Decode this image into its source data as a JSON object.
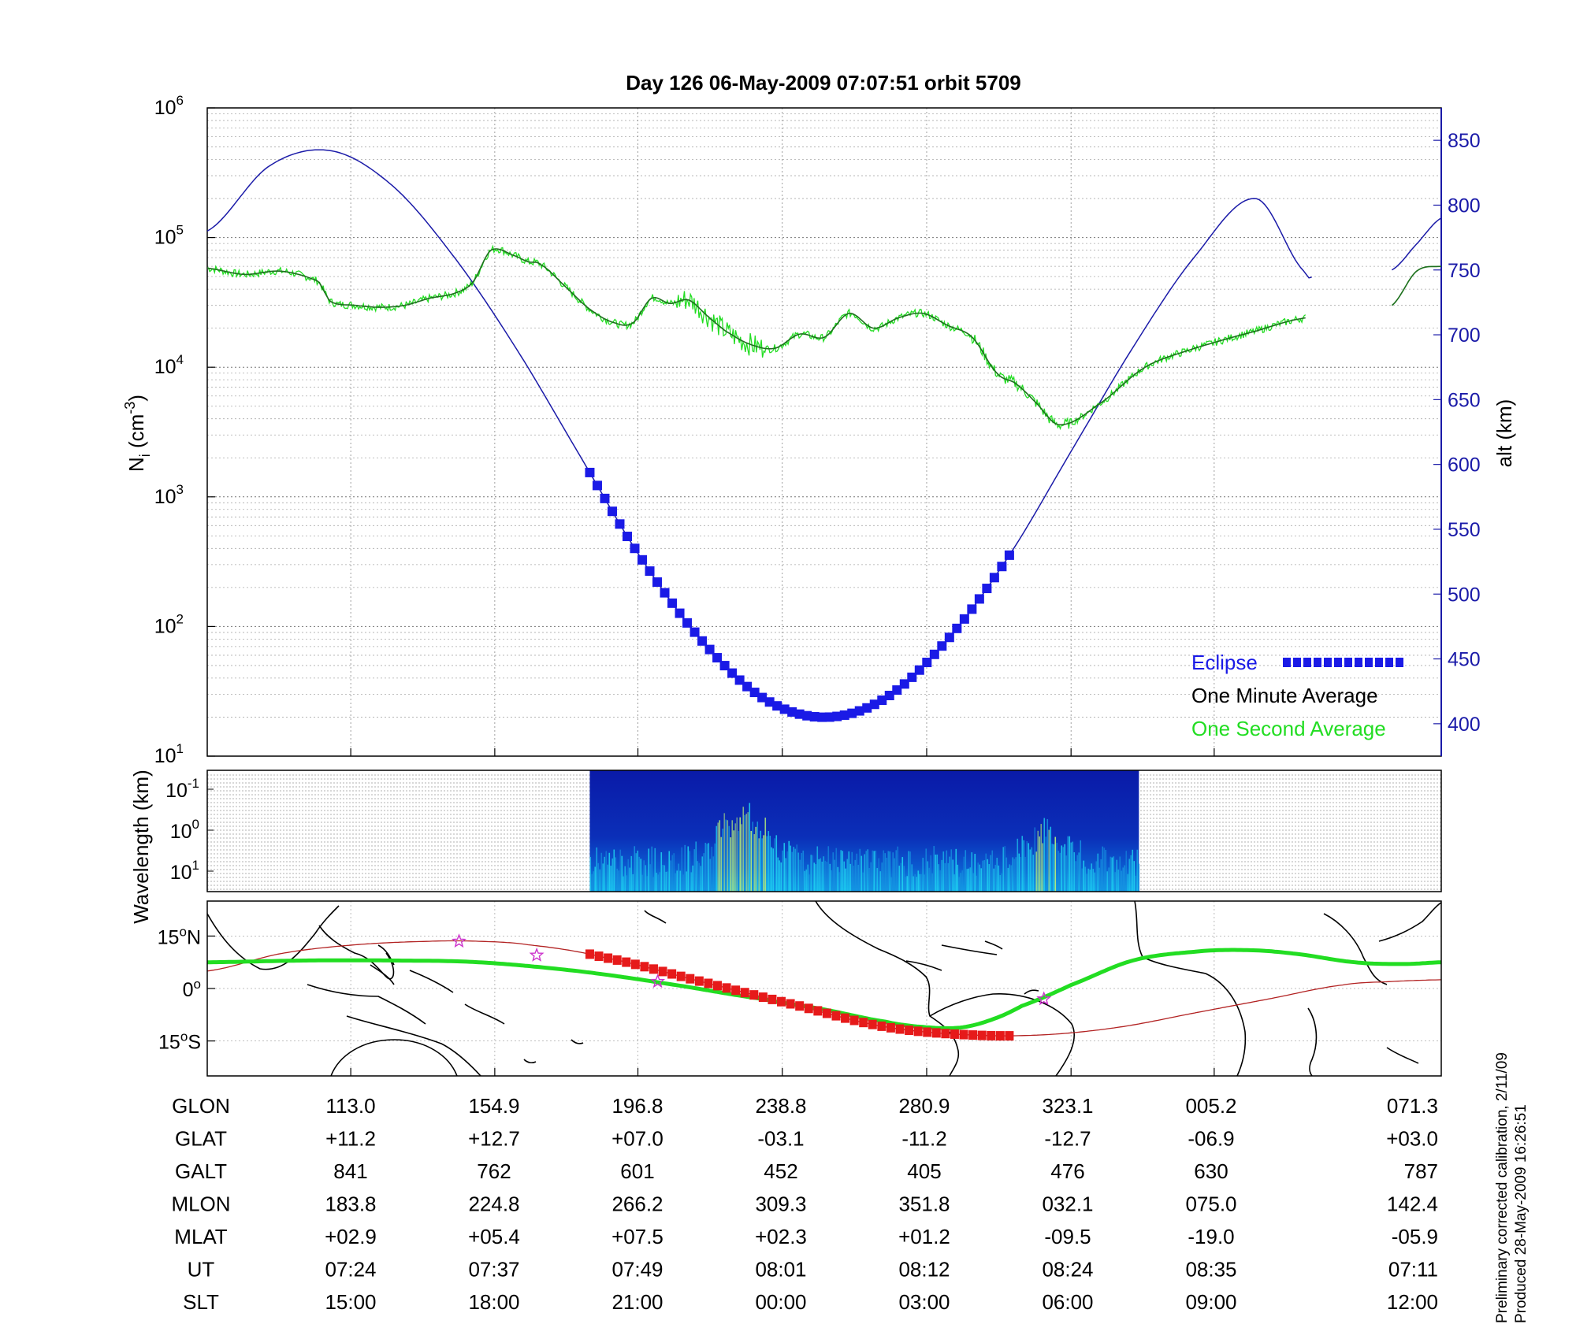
{
  "title": "Day 126  06-May-2009 07:07:51   orbit 5709",
  "colors": {
    "eclipse": "#1a1ae6",
    "one_minute": "#1f6f1f",
    "one_second": "#22dd22",
    "altitude": "#1a1aa8",
    "track": "#22dd22",
    "track_eclipse": "#e61a1a",
    "mag_equator": "#b22222",
    "star": "#cc33cc"
  },
  "chart_data": [
    {
      "type": "line",
      "name": "density-altitude-panel",
      "ylabel_left": "N",
      "ylabel_left_sub": "i",
      "ylabel_left_unit": " (cm",
      "ylabel_left_sup": "-3",
      "ylabel_left_close": ")",
      "ylabel_right": "alt (km)",
      "y_left_scale": "log",
      "y_left_range": [
        10,
        1000000
      ],
      "y_left_ticks": [
        {
          "base": "10",
          "exp": "1"
        },
        {
          "base": "10",
          "exp": "2"
        },
        {
          "base": "10",
          "exp": "3"
        },
        {
          "base": "10",
          "exp": "4"
        },
        {
          "base": "10",
          "exp": "5"
        },
        {
          "base": "10",
          "exp": "6"
        }
      ],
      "y_right_range": [
        375,
        875
      ],
      "y_right_ticks": [
        "400",
        "450",
        "500",
        "550",
        "600",
        "650",
        "700",
        "750",
        "800",
        "850"
      ],
      "x_range_fraction": [
        0,
        1
      ],
      "grid": true,
      "legend_position": "bottom-right",
      "legend": [
        {
          "label": "Eclipse",
          "color": "#1a1ae6"
        },
        {
          "label": "One Minute Average",
          "color": "#000000"
        },
        {
          "label": "One Second Average",
          "color": "#22dd22"
        }
      ],
      "altitude": {
        "x": [
          0,
          0.05,
          0.1,
          0.15,
          0.2,
          0.25,
          0.3,
          0.35,
          0.4,
          0.45,
          0.5,
          0.55,
          0.6,
          0.65,
          0.7,
          0.75,
          0.8,
          0.85,
          0.89,
          0.9
        ],
        "y": [
          780,
          830,
          842,
          815,
          760,
          690,
          610,
          530,
          465,
          420,
          405,
          420,
          465,
          530,
          610,
          690,
          760,
          805,
          748,
          748
        ]
      },
      "altitude_segments": [
        [
          0,
          0.895
        ],
        [
          0.96,
          1.0
        ]
      ],
      "altitude_tail": {
        "x": [
          0.96,
          0.98,
          1.0
        ],
        "y": [
          750,
          770,
          790
        ]
      },
      "eclipse_x_range": [
        0.31,
        0.65
      ],
      "one_minute_average": {
        "x": [
          0,
          0.03,
          0.06,
          0.09,
          0.1,
          0.12,
          0.14,
          0.16,
          0.18,
          0.2,
          0.215,
          0.23,
          0.25,
          0.26,
          0.27,
          0.29,
          0.31,
          0.33,
          0.345,
          0.36,
          0.375,
          0.39,
          0.405,
          0.42,
          0.44,
          0.46,
          0.48,
          0.5,
          0.52,
          0.54,
          0.56,
          0.58,
          0.6,
          0.62,
          0.64,
          0.655,
          0.67,
          0.69,
          0.72,
          0.76,
          0.8,
          0.85,
          0.89
        ],
        "y": [
          58000,
          52000,
          55000,
          46000,
          32000,
          30000,
          29000,
          30000,
          34000,
          37000,
          45000,
          80000,
          72000,
          65000,
          62000,
          42000,
          28000,
          22000,
          22000,
          34000,
          31000,
          33000,
          25000,
          19000,
          15000,
          14000,
          18000,
          17000,
          26000,
          20000,
          24000,
          26000,
          21000,
          17000,
          9000,
          7500,
          5500,
          3600,
          5000,
          10000,
          14000,
          19000,
          24000
        ]
      },
      "one_minute_tail": {
        "x": [
          0.96,
          0.98,
          1.0
        ],
        "y": [
          30000,
          55000,
          60000
        ]
      }
    },
    {
      "type": "heatmap",
      "name": "wavelength-spectrogram-panel",
      "ylabel": "Wavelength (km)",
      "y_scale": "log",
      "y_ticks": [
        {
          "base": "10",
          "exp": "-1"
        },
        {
          "base": "10",
          "exp": "0"
        },
        {
          "base": "10",
          "exp": "1"
        }
      ],
      "data_x_range_fraction": [
        0.31,
        0.755
      ]
    },
    {
      "type": "line",
      "name": "ground-track-map-panel",
      "y_ticks": [
        {
          "value": "15",
          "unit": "o",
          "hemi": "N"
        },
        {
          "value": "0",
          "unit": "o",
          "hemi": ""
        },
        {
          "value": "15",
          "unit": "o",
          "hemi": "S"
        }
      ],
      "y_range": [
        -25,
        25
      ],
      "ground_track": {
        "x": [
          0,
          0.08,
          0.15,
          0.22,
          0.3,
          0.37,
          0.45,
          0.5,
          0.55,
          0.58,
          0.61,
          0.635,
          0.66,
          0.7,
          0.75,
          0.8,
          0.84,
          0.88,
          0.93,
          0.97,
          1.0
        ],
        "y": [
          7.5,
          8,
          8,
          7.5,
          5,
          1.5,
          -3,
          -6,
          -9.5,
          -11,
          -11.2,
          -9,
          -5,
          1,
          8,
          10.5,
          11,
          10,
          7.5,
          7,
          7.5
        ]
      },
      "mag_equator": {
        "x": [
          0,
          0.06,
          0.12,
          0.18,
          0.22,
          0.26,
          0.32,
          0.4,
          0.48,
          0.55,
          0.62,
          0.68,
          0.74,
          0.8,
          0.86,
          0.92,
          0.96,
          1.0
        ],
        "y": [
          5,
          10,
          12.5,
          13.5,
          13.5,
          12.5,
          9,
          2,
          -5,
          -11,
          -13.3,
          -13.2,
          -11,
          -7,
          -3,
          1,
          2,
          2.5
        ]
      },
      "eclipse_track_x_range": [
        0.31,
        0.65
      ],
      "stars": {
        "x": [
          0.204,
          0.267,
          0.365,
          0.678
        ],
        "y": [
          13.5,
          9.5,
          2,
          -3
        ]
      }
    }
  ],
  "orbit_table": {
    "rows": [
      {
        "label": "GLON",
        "values": [
          "113.0",
          "154.9",
          "196.8",
          "238.8",
          "280.9",
          "323.1",
          "005.2",
          "071.3"
        ]
      },
      {
        "label": "GLAT",
        "values": [
          "+11.2",
          "+12.7",
          "+07.0",
          "-03.1",
          "-11.2",
          "-12.7",
          "-06.9",
          "+03.0"
        ]
      },
      {
        "label": "GALT",
        "values": [
          "841",
          "762",
          "601",
          "452",
          "405",
          "476",
          "630",
          "787"
        ]
      },
      {
        "label": "MLON",
        "values": [
          "183.8",
          "224.8",
          "266.2",
          "309.3",
          "351.8",
          "032.1",
          "075.0",
          "142.4"
        ]
      },
      {
        "label": "MLAT",
        "values": [
          "+02.9",
          "+05.4",
          "+07.5",
          "+02.3",
          "+01.2",
          "-09.5",
          "-19.0",
          "-05.9"
        ]
      },
      {
        "label": "UT",
        "values": [
          "07:24",
          "07:37",
          "07:49",
          "08:01",
          "08:12",
          "08:24",
          "08:35",
          "07:11"
        ]
      },
      {
        "label": "SLT",
        "values": [
          "15:00",
          "18:00",
          "21:00",
          "00:00",
          "03:00",
          "06:00",
          "09:00",
          "12:00"
        ]
      }
    ]
  },
  "footnote": {
    "line1": "Preliminary corrected calibration, 2/11/09",
    "line2": "Produced 28-May-2009 16:26:51"
  }
}
